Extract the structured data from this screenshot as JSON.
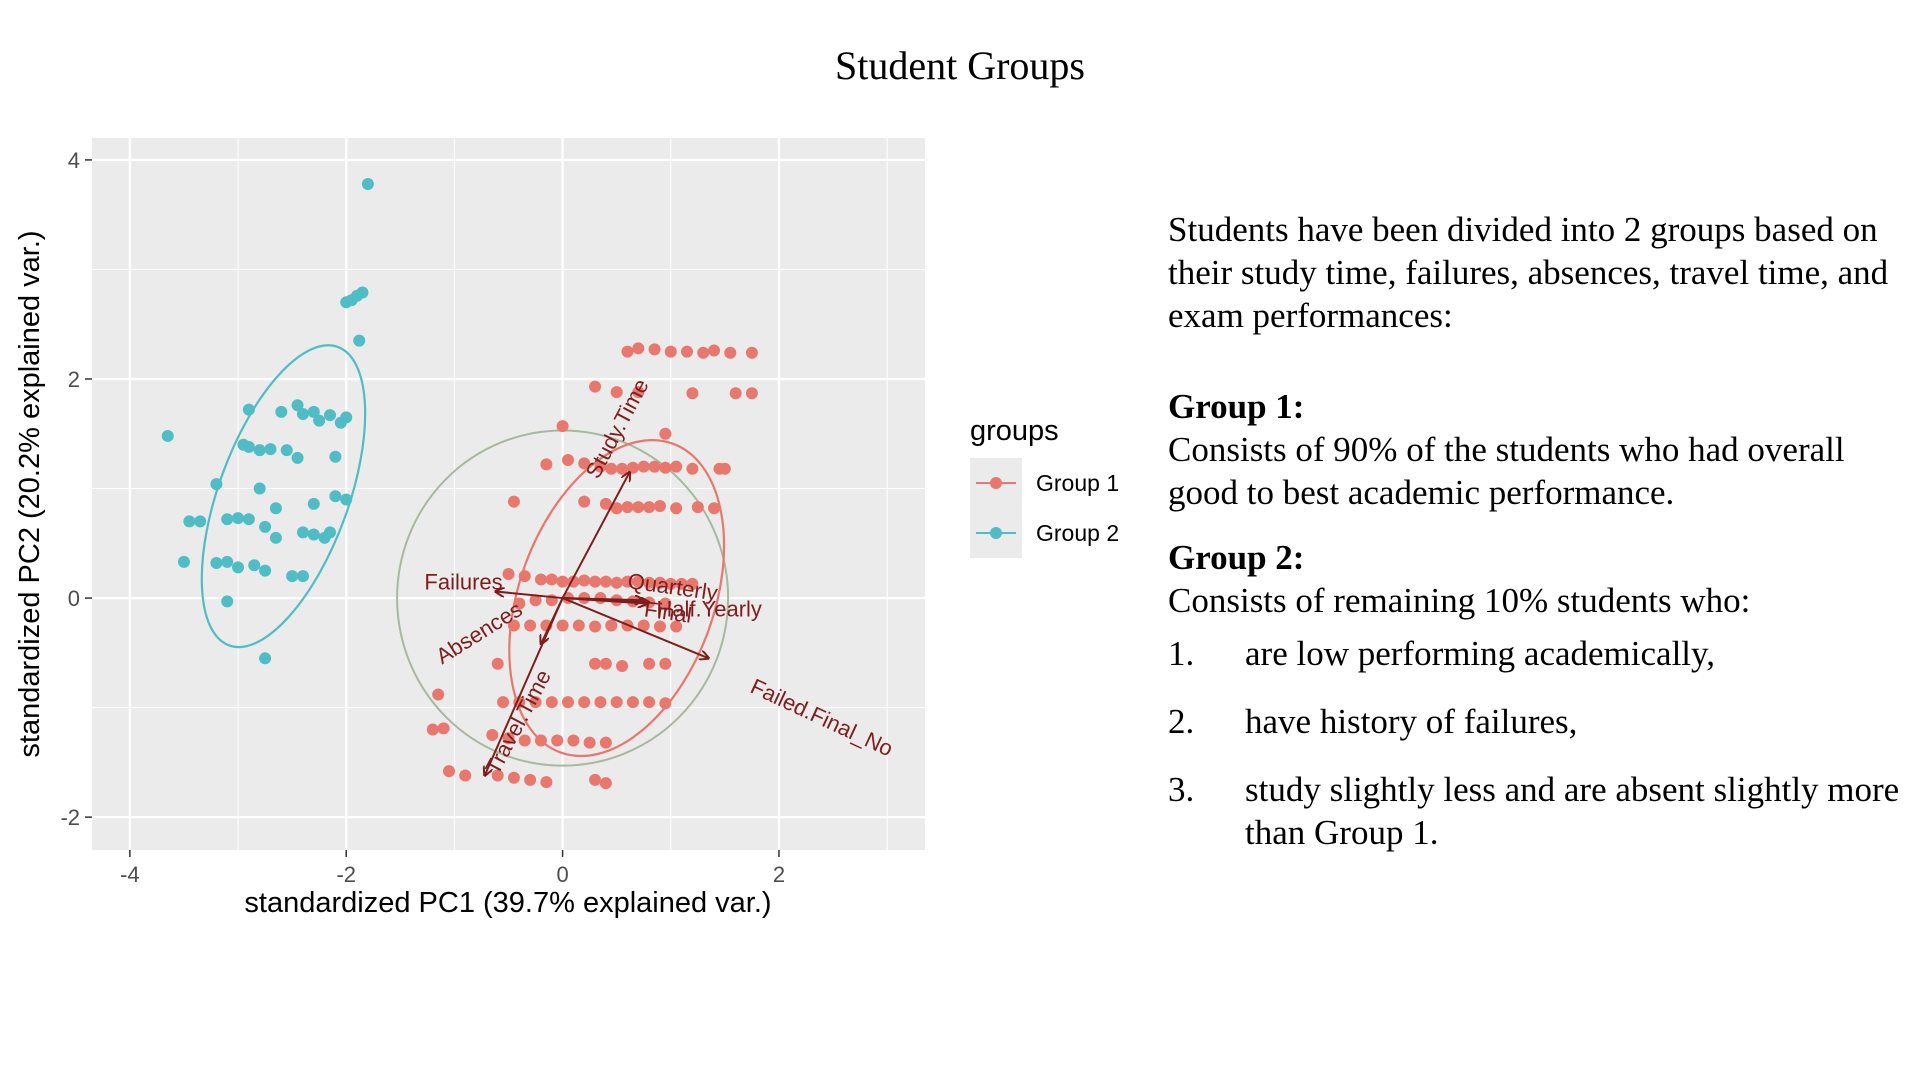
{
  "slide": {
    "title": "Student Groups"
  },
  "legend": {
    "title": "groups",
    "items": [
      {
        "label": "Group 1",
        "color": "#e8776e"
      },
      {
        "label": "Group 2",
        "color": "#4fbcc6"
      }
    ]
  },
  "description": {
    "intro": "Students have been divided into 2 groups based on their study time, failures, absences, travel time, and exam performances:",
    "group1_heading": "Group 1:",
    "group1_text": "Consists of 90% of the students who had overall good to best academic performance.",
    "group2_heading": "Group 2:",
    "group2_text": "Consists of remaining 10% students who:",
    "group2_points": [
      {
        "num": "1.",
        "text": "are low performing academically,"
      },
      {
        "num": "2.",
        "text": "have history of failures,"
      },
      {
        "num": "3.",
        "text": "study slightly less and are absent slightly more than Group 1."
      }
    ]
  },
  "chart_data": {
    "type": "scatter",
    "title": "",
    "xlabel": "standardized PC1 (39.7% explained var.)",
    "ylabel": "standardized PC2 (20.2% explained var.)",
    "xlim": [
      -4.35,
      3.35
    ],
    "ylim": [
      -2.3,
      4.2
    ],
    "x_ticks": [
      -4,
      -2,
      0,
      2
    ],
    "y_ticks": [
      -2,
      0,
      2,
      4
    ],
    "grid": true,
    "legend_position": "right",
    "series": [
      {
        "name": "Group 1",
        "color": "#e8776e",
        "points": [
          [
            0.6,
            2.25
          ],
          [
            0.7,
            2.28
          ],
          [
            0.85,
            2.27
          ],
          [
            1.0,
            2.25
          ],
          [
            1.15,
            2.25
          ],
          [
            1.3,
            2.24
          ],
          [
            1.4,
            2.26
          ],
          [
            1.55,
            2.24
          ],
          [
            1.75,
            2.24
          ],
          [
            0.3,
            1.93
          ],
          [
            0.5,
            1.88
          ],
          [
            0.7,
            1.88
          ],
          [
            1.2,
            1.87
          ],
          [
            1.6,
            1.87
          ],
          [
            1.75,
            1.87
          ],
          [
            0.0,
            1.57
          ],
          [
            0.95,
            1.5
          ],
          [
            -0.15,
            1.22
          ],
          [
            0.05,
            1.26
          ],
          [
            0.2,
            1.23
          ],
          [
            0.35,
            1.2
          ],
          [
            0.45,
            1.18
          ],
          [
            0.55,
            1.18
          ],
          [
            0.65,
            1.19
          ],
          [
            0.75,
            1.2
          ],
          [
            0.85,
            1.2
          ],
          [
            0.95,
            1.19
          ],
          [
            1.05,
            1.2
          ],
          [
            1.2,
            1.18
          ],
          [
            1.45,
            1.18
          ],
          [
            1.5,
            1.18
          ],
          [
            -0.45,
            0.88
          ],
          [
            0.2,
            0.88
          ],
          [
            0.4,
            0.86
          ],
          [
            0.5,
            0.82
          ],
          [
            0.6,
            0.83
          ],
          [
            0.7,
            0.83
          ],
          [
            0.8,
            0.83
          ],
          [
            0.9,
            0.84
          ],
          [
            1.05,
            0.82
          ],
          [
            1.25,
            0.83
          ],
          [
            1.4,
            0.82
          ],
          [
            -0.5,
            0.22
          ],
          [
            -0.35,
            0.2
          ],
          [
            -0.2,
            0.17
          ],
          [
            -0.1,
            0.17
          ],
          [
            0.0,
            0.15
          ],
          [
            0.1,
            0.15
          ],
          [
            0.2,
            0.16
          ],
          [
            0.3,
            0.15
          ],
          [
            0.4,
            0.15
          ],
          [
            0.5,
            0.14
          ],
          [
            0.6,
            0.15
          ],
          [
            0.7,
            0.15
          ],
          [
            0.8,
            0.14
          ],
          [
            0.9,
            0.14
          ],
          [
            1.0,
            0.13
          ],
          [
            1.1,
            0.13
          ],
          [
            1.2,
            0.13
          ],
          [
            -0.4,
            -0.05
          ],
          [
            -0.25,
            -0.02
          ],
          [
            -0.1,
            -0.02
          ],
          [
            0.05,
            0.0
          ],
          [
            0.2,
            0.0
          ],
          [
            0.35,
            0.0
          ],
          [
            0.5,
            -0.02
          ],
          [
            0.65,
            -0.03
          ],
          [
            0.8,
            -0.04
          ],
          [
            0.95,
            -0.05
          ],
          [
            -0.45,
            -0.25
          ],
          [
            -0.3,
            -0.25
          ],
          [
            -0.15,
            -0.25
          ],
          [
            0.0,
            -0.25
          ],
          [
            0.15,
            -0.25
          ],
          [
            0.3,
            -0.26
          ],
          [
            0.45,
            -0.25
          ],
          [
            0.6,
            -0.25
          ],
          [
            0.75,
            -0.25
          ],
          [
            0.9,
            -0.26
          ],
          [
            1.05,
            -0.26
          ],
          [
            -0.6,
            -0.6
          ],
          [
            0.3,
            -0.6
          ],
          [
            0.4,
            -0.6
          ],
          [
            0.55,
            -0.62
          ],
          [
            0.8,
            -0.6
          ],
          [
            -0.55,
            -0.95
          ],
          [
            -0.4,
            -0.95
          ],
          [
            -0.25,
            -0.95
          ],
          [
            -0.1,
            -0.95
          ],
          [
            0.05,
            -0.95
          ],
          [
            0.2,
            -0.95
          ],
          [
            0.35,
            -0.95
          ],
          [
            0.5,
            -0.95
          ],
          [
            0.65,
            -0.95
          ],
          [
            0.8,
            -0.95
          ],
          [
            0.95,
            -0.96
          ],
          [
            -1.2,
            -1.2
          ],
          [
            -1.1,
            -1.19
          ],
          [
            -0.65,
            -1.25
          ],
          [
            -0.5,
            -1.28
          ],
          [
            -0.35,
            -1.3
          ],
          [
            -0.2,
            -1.3
          ],
          [
            -0.05,
            -1.3
          ],
          [
            0.1,
            -1.3
          ],
          [
            0.25,
            -1.32
          ],
          [
            0.4,
            -1.32
          ],
          [
            -1.05,
            -1.58
          ],
          [
            -0.9,
            -1.62
          ],
          [
            -0.6,
            -1.62
          ],
          [
            -0.45,
            -1.64
          ],
          [
            -0.3,
            -1.66
          ],
          [
            -0.15,
            -1.68
          ],
          [
            0.3,
            -1.66
          ],
          [
            0.4,
            -1.69
          ],
          [
            -1.15,
            -0.88
          ],
          [
            0.95,
            -0.6
          ]
        ]
      },
      {
        "name": "Group 2",
        "color": "#4fbcc6",
        "points": [
          [
            -1.8,
            3.78
          ],
          [
            -1.85,
            2.79
          ],
          [
            -1.9,
            2.76
          ],
          [
            -1.95,
            2.72
          ],
          [
            -1.88,
            2.35
          ],
          [
            -2.0,
            2.7
          ],
          [
            -3.65,
            1.48
          ],
          [
            -2.9,
            1.72
          ],
          [
            -2.6,
            1.7
          ],
          [
            -2.45,
            1.76
          ],
          [
            -2.4,
            1.68
          ],
          [
            -2.3,
            1.7
          ],
          [
            -2.15,
            1.67
          ],
          [
            -2.0,
            1.65
          ],
          [
            -2.05,
            1.6
          ],
          [
            -2.25,
            1.62
          ],
          [
            -2.95,
            1.4
          ],
          [
            -2.8,
            1.35
          ],
          [
            -2.7,
            1.36
          ],
          [
            -2.55,
            1.35
          ],
          [
            -2.1,
            1.29
          ],
          [
            -2.45,
            1.28
          ],
          [
            -3.2,
            1.04
          ],
          [
            -2.8,
            1.0
          ],
          [
            -2.0,
            0.9
          ],
          [
            -2.1,
            0.93
          ],
          [
            -2.3,
            0.86
          ],
          [
            -2.65,
            0.82
          ],
          [
            -3.45,
            0.7
          ],
          [
            -3.35,
            0.7
          ],
          [
            -3.1,
            0.72
          ],
          [
            -3.0,
            0.73
          ],
          [
            -2.9,
            0.72
          ],
          [
            -2.75,
            0.65
          ],
          [
            -2.65,
            0.55
          ],
          [
            -2.4,
            0.6
          ],
          [
            -2.3,
            0.58
          ],
          [
            -2.2,
            0.55
          ],
          [
            -2.15,
            0.6
          ],
          [
            -3.5,
            0.33
          ],
          [
            -3.2,
            0.32
          ],
          [
            -3.1,
            0.33
          ],
          [
            -2.85,
            0.3
          ],
          [
            -2.75,
            0.25
          ],
          [
            -2.5,
            0.2
          ],
          [
            -2.4,
            0.2
          ],
          [
            -3.0,
            0.28
          ],
          [
            -3.1,
            -0.03
          ],
          [
            -2.75,
            -0.55
          ],
          [
            -2.9,
            1.38
          ]
        ]
      }
    ],
    "ellipses": [
      {
        "group": "Group 1",
        "color": "#e8776e",
        "center": [
          0.5,
          0.0
        ],
        "rx": 0.9,
        "ry": 1.5,
        "angle_deg": 20
      },
      {
        "group": "Group 2",
        "color": "#4fbcc6",
        "center": [
          -2.58,
          0.93
        ],
        "rx": 0.6,
        "ry": 1.45,
        "angle_deg": 20
      }
    ],
    "correlation_circle": {
      "center": [
        0,
        0
      ],
      "radius": 1.53,
      "color": "#a8b8a0"
    },
    "loadings": [
      {
        "label": "Study.Time",
        "x": 0.62,
        "y": 1.15
      },
      {
        "label": "Failures",
        "x": -0.62,
        "y": 0.06
      },
      {
        "label": "Absences",
        "x": -0.2,
        "y": -0.42
      },
      {
        "label": "Travel.Time",
        "x": -0.72,
        "y": -1.62
      },
      {
        "label": "Quarterly",
        "x": 0.75,
        "y": -0.02
      },
      {
        "label": "Half.Yearly",
        "x": 0.8,
        "y": -0.04
      },
      {
        "label": "Final",
        "x": 0.78,
        "y": -0.05
      },
      {
        "label": "Failed.Final_No",
        "x": 1.35,
        "y": -0.55
      }
    ]
  }
}
